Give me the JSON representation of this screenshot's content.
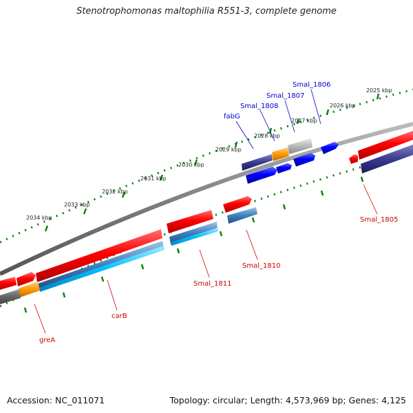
{
  "title": "Stenotrophomonas maltophilia R551-3, complete genome",
  "footer": {
    "accession": "Accession: NC_011071",
    "topology": "Topology: circular; Length: 4,573,969 bp; Genes: 4,125"
  },
  "scale_labels": [
    "2025 kbp",
    "2026 kbp",
    "2027 kbp",
    "2028 kbp",
    "2029 kbp",
    "2030 kbp",
    "2031 kbp",
    "2032 kbp",
    "2033 kbp",
    "2034 kbp"
  ],
  "gene_labels": {
    "smal_1806": "Smal_1806",
    "smal_1807": "Smal_1807",
    "smal_1808": "Smal_1808",
    "fabg": "fabG",
    "smal_1805": "Smal_1805",
    "smal_1810": "Smal_1810",
    "smal_1811": "Smal_1811",
    "carb": "carB",
    "grea": "greA"
  },
  "colors": {
    "forward_cds": "#ff0000",
    "reverse_cds": "#0000ff",
    "label_forward": "#cc0000",
    "label_reverse": "#0000cc",
    "highlight": "#ff9900",
    "backbone": "#808080",
    "ticks": "#008000"
  }
}
